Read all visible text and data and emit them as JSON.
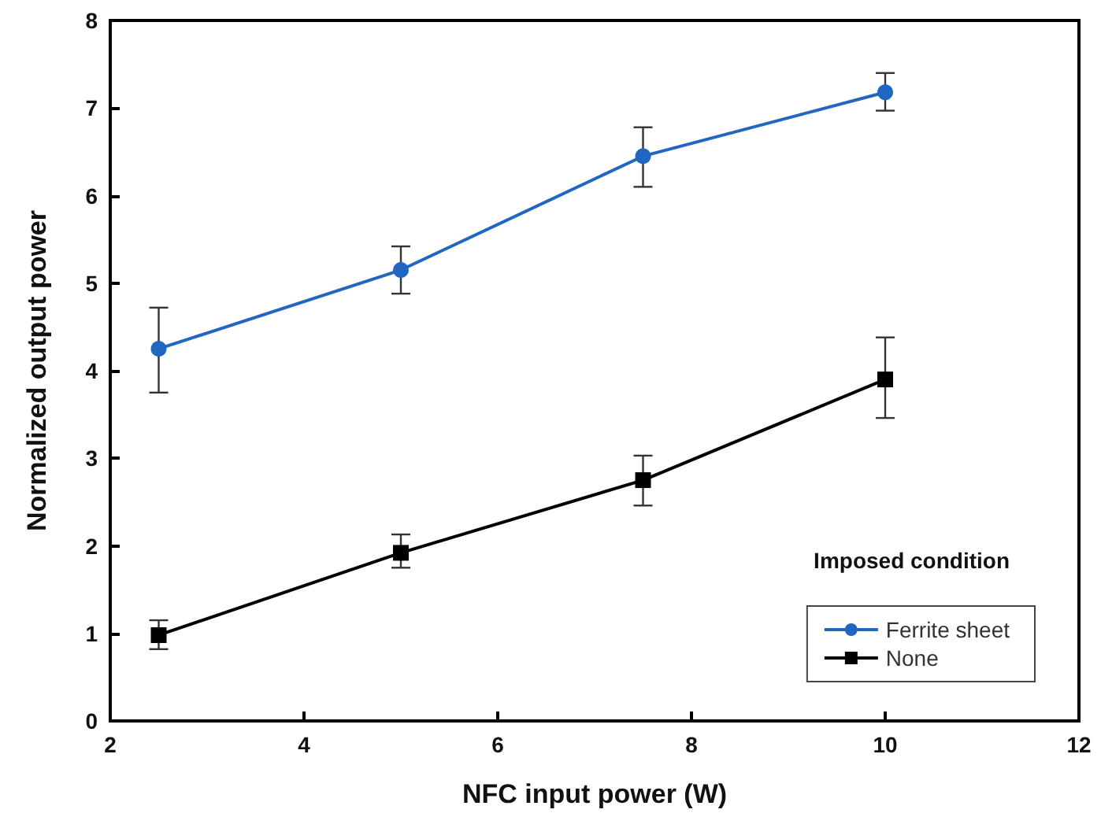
{
  "chart_data": {
    "type": "line",
    "xlabel": "NFC input power (W)",
    "ylabel": "Normalized output power",
    "legend_title": "Imposed condition",
    "x": [
      2.5,
      5,
      7.5,
      10
    ],
    "series": [
      {
        "name": "Ferrite sheet",
        "color": "#2166c0",
        "marker": "circle",
        "values": [
          4.25,
          5.15,
          6.45,
          7.18
        ],
        "errors": [
          [
            3.75,
            4.72
          ],
          [
            4.88,
            5.42
          ],
          [
            6.1,
            6.78
          ],
          [
            6.97,
            7.4
          ]
        ]
      },
      {
        "name": "None",
        "color": "#000000",
        "marker": "square",
        "values": [
          0.98,
          1.92,
          2.75,
          3.9
        ],
        "errors": [
          [
            0.82,
            1.15
          ],
          [
            1.75,
            2.13
          ],
          [
            2.46,
            3.03
          ],
          [
            3.46,
            4.38
          ]
        ]
      }
    ],
    "xlim": [
      2,
      12
    ],
    "xticks": [
      2,
      4,
      6,
      8,
      10,
      12
    ],
    "ylim": [
      0,
      8
    ],
    "yticks": [
      0,
      1,
      2,
      3,
      4,
      5,
      6,
      7,
      8
    ],
    "grid": false,
    "legend": "bottom right",
    "line_style": "solid"
  }
}
